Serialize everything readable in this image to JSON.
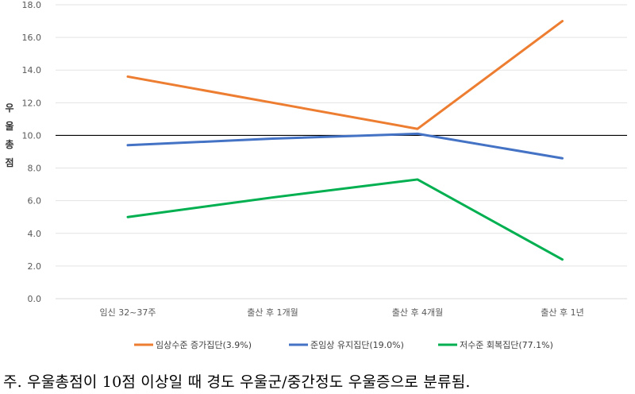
{
  "chart_data": {
    "type": "line",
    "categories": [
      "임신 32~37주",
      "출산 후 1개월",
      "출산 후 4개월",
      "출산 후 1년"
    ],
    "ylabel": "우울총점",
    "ylim": [
      0,
      18
    ],
    "yticks": [
      "0.0",
      "2.0",
      "4.0",
      "6.0",
      "8.0",
      "10.0",
      "12.0",
      "14.0",
      "16.0",
      "18.0"
    ],
    "reference_line": 10,
    "series": [
      {
        "name": "임상수준 증가집단(3.9%)",
        "color": "#ED7D31",
        "values": [
          13.6,
          12.0,
          10.4,
          17.0
        ]
      },
      {
        "name": "준임상 유지집단(19.0%)",
        "color": "#4472C4",
        "values": [
          9.4,
          9.8,
          10.1,
          8.6
        ]
      },
      {
        "name": "저수준 회복집단(77.1%)",
        "color": "#00B050",
        "values": [
          5.0,
          6.2,
          7.3,
          2.4
        ]
      }
    ]
  },
  "note": "주. 우울총점이 10점 이상일 때 경도 우울군/중간정도 우울증으로 분류됨."
}
